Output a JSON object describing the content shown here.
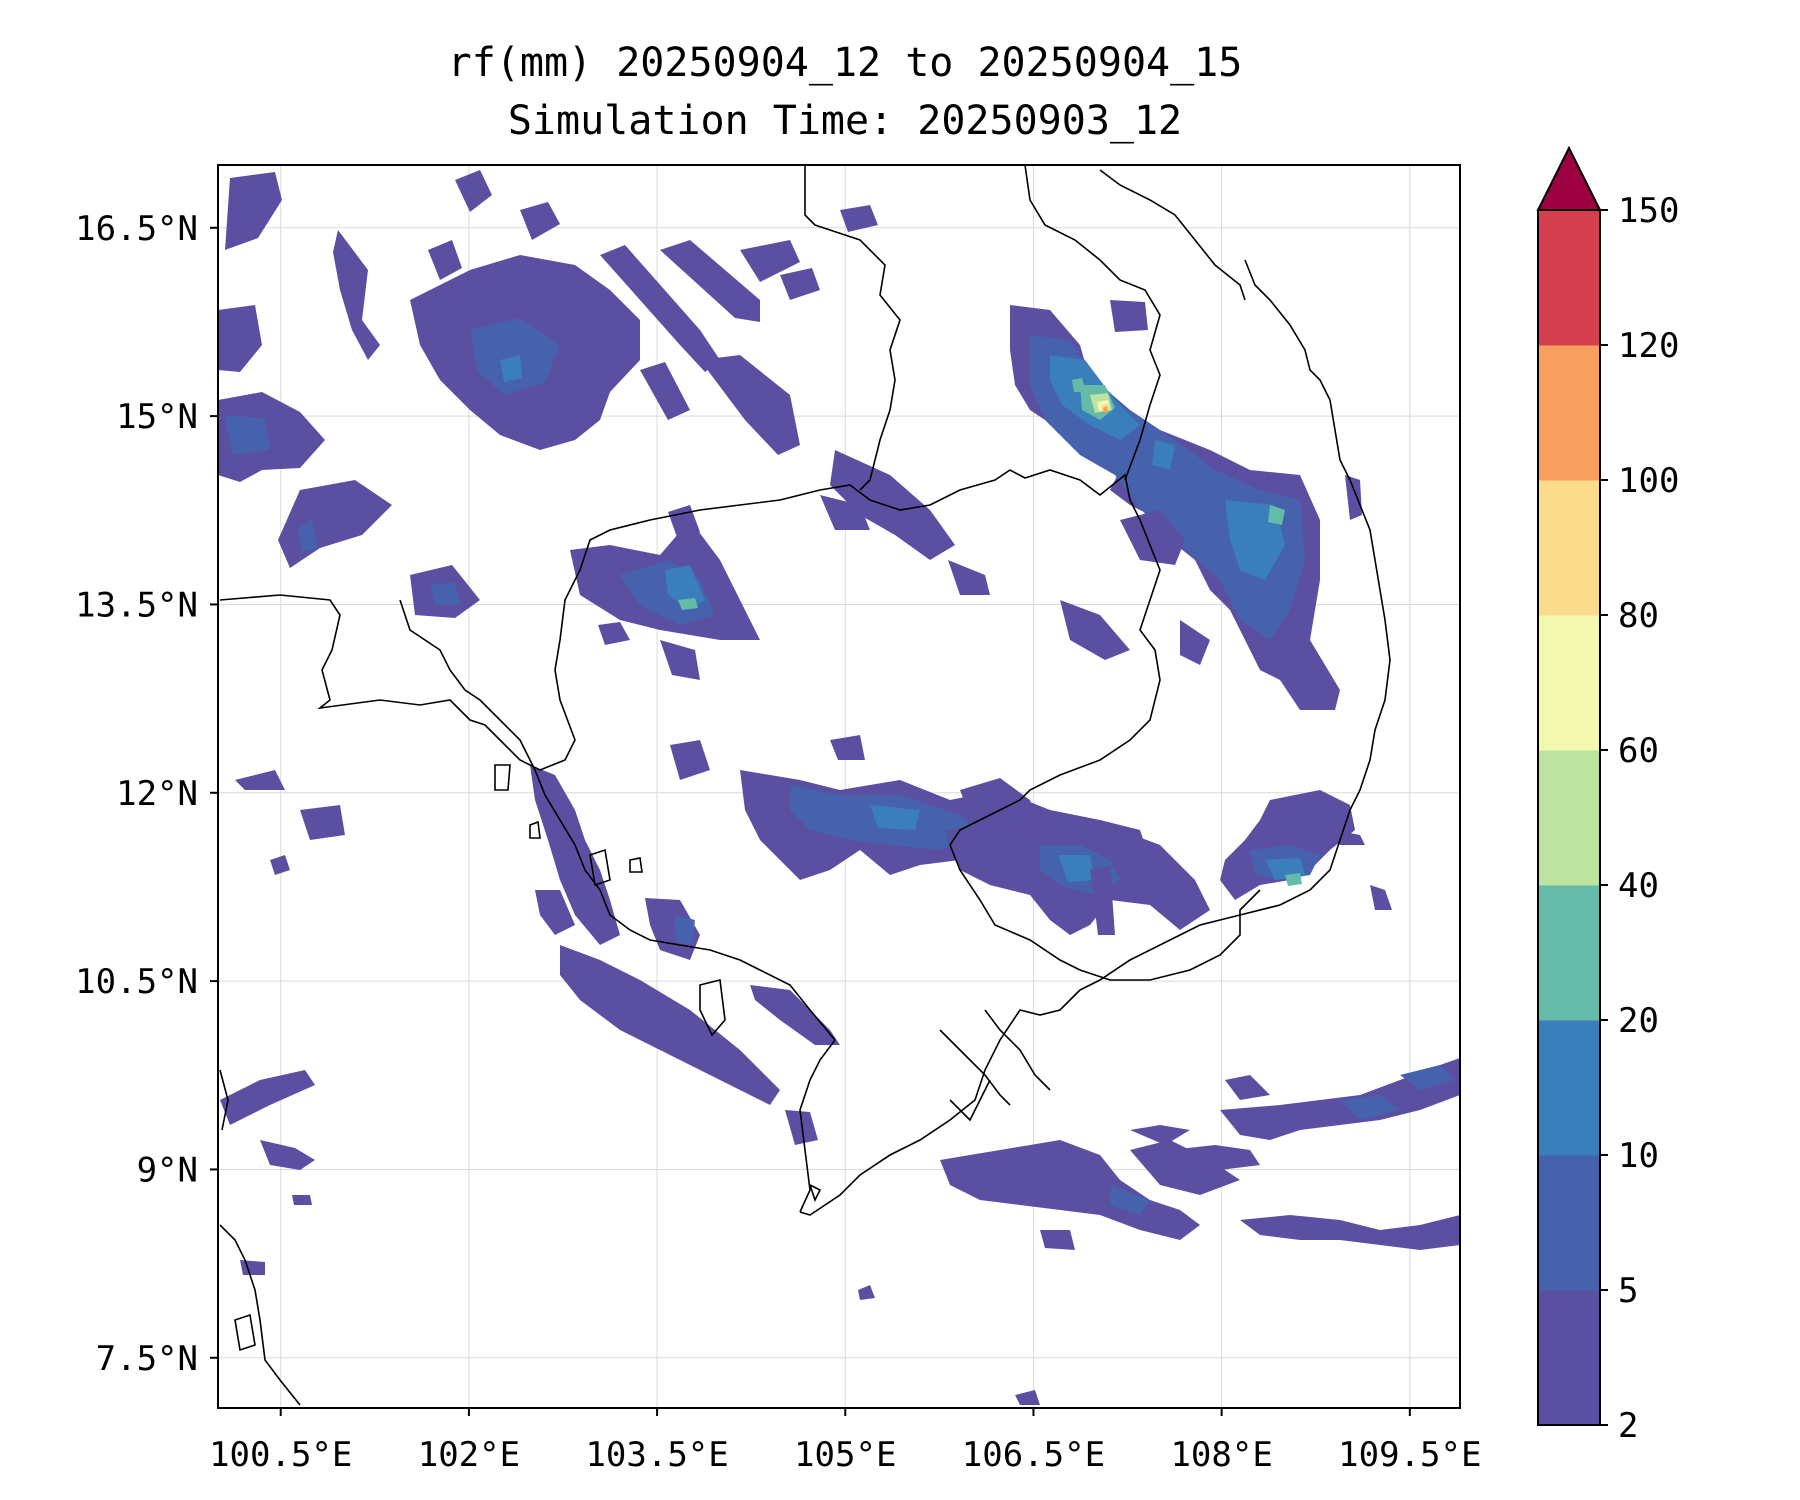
{
  "title": {
    "line1": "rf(mm) 20250904_12 to 20250904_15",
    "line2": "Simulation Time: 20250903_12"
  },
  "map": {
    "lon_range": [
      100.0,
      109.9
    ],
    "lat_range": [
      7.1,
      17.0
    ],
    "lon_ticks": [
      {
        "value": 100.5,
        "label": "100.5°E"
      },
      {
        "value": 102.0,
        "label": "102°E"
      },
      {
        "value": 103.5,
        "label": "103.5°E"
      },
      {
        "value": 105.0,
        "label": "105°E"
      },
      {
        "value": 106.5,
        "label": "106.5°E"
      },
      {
        "value": 108.0,
        "label": "108°E"
      },
      {
        "value": 109.5,
        "label": "109.5°E"
      }
    ],
    "lat_ticks": [
      {
        "value": 16.5,
        "label": "16.5°N"
      },
      {
        "value": 15.0,
        "label": "15°N"
      },
      {
        "value": 13.5,
        "label": "13.5°N"
      },
      {
        "value": 12.0,
        "label": "12°N"
      },
      {
        "value": 10.5,
        "label": "10.5°N"
      },
      {
        "value": 9.0,
        "label": "9°N"
      },
      {
        "value": 7.5,
        "label": "7.5°N"
      }
    ],
    "grid": true,
    "rain_colors": {
      "2-5": "#5b4fa2",
      "5-10": "#4662ad",
      "10-20": "#3a7fbb",
      "20-40": "#64bba7",
      "40-60": "#bde3a1",
      "60-80": "#f2f8ad",
      "80-100": "#fbdc8c",
      "100-120": "#f89e5e",
      "120-150": "#d53e4f",
      "150+": "#9e0142"
    }
  },
  "colorbar": {
    "levels": [
      2,
      5,
      10,
      20,
      40,
      60,
      80,
      100,
      120,
      150
    ],
    "labels": [
      "2",
      "5",
      "10",
      "20",
      "40",
      "60",
      "80",
      "100",
      "120",
      "150"
    ],
    "colors": [
      "#5b4fa2",
      "#4662ad",
      "#3a7fbb",
      "#64bba7",
      "#bde3a1",
      "#f2f8ad",
      "#fbdc8c",
      "#f89e5e",
      "#d53e4f"
    ],
    "extend_color": "#9e0142"
  }
}
